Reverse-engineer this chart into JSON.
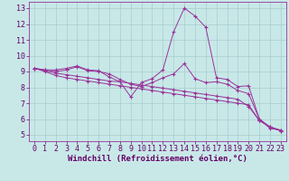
{
  "xlabel": "Windchill (Refroidissement éolien,°C)",
  "background_color": "#c8e8e8",
  "grid_color": "#a8cccc",
  "line_color": "#993399",
  "spine_color": "#993399",
  "tick_color": "#660066",
  "xlim_min": -0.5,
  "xlim_max": 23.5,
  "ylim_min": 4.6,
  "ylim_max": 13.4,
  "yticks": [
    5,
    6,
    7,
    8,
    9,
    10,
    11,
    12,
    13
  ],
  "xticks": [
    0,
    1,
    2,
    3,
    4,
    5,
    6,
    7,
    8,
    9,
    10,
    11,
    12,
    13,
    14,
    15,
    16,
    17,
    18,
    19,
    20,
    21,
    22,
    23
  ],
  "series": [
    [
      9.2,
      9.1,
      9.1,
      9.2,
      9.35,
      9.1,
      9.05,
      8.65,
      8.35,
      7.4,
      8.3,
      8.55,
      9.1,
      11.5,
      13.0,
      12.5,
      11.8,
      8.6,
      8.5,
      8.05,
      8.1,
      6.0,
      5.4,
      5.3
    ],
    [
      9.2,
      9.1,
      9.0,
      9.1,
      9.3,
      9.05,
      9.0,
      8.85,
      8.5,
      8.2,
      8.05,
      8.3,
      8.6,
      8.85,
      9.5,
      8.55,
      8.3,
      8.35,
      8.2,
      7.8,
      7.6,
      6.0,
      5.5,
      5.3
    ],
    [
      9.2,
      9.0,
      8.75,
      8.6,
      8.5,
      8.4,
      8.3,
      8.2,
      8.1,
      8.0,
      7.9,
      7.8,
      7.7,
      7.6,
      7.5,
      7.4,
      7.3,
      7.2,
      7.1,
      7.0,
      6.9,
      5.9,
      5.5,
      5.25
    ],
    [
      9.2,
      9.05,
      8.9,
      8.8,
      8.7,
      8.6,
      8.5,
      8.4,
      8.35,
      8.25,
      8.15,
      8.05,
      7.95,
      7.85,
      7.75,
      7.65,
      7.55,
      7.45,
      7.35,
      7.25,
      6.8,
      5.9,
      5.5,
      5.25
    ]
  ],
  "xlabel_fontsize": 6.5,
  "tick_fontsize": 6.0,
  "xlabel_fontweight": "bold"
}
